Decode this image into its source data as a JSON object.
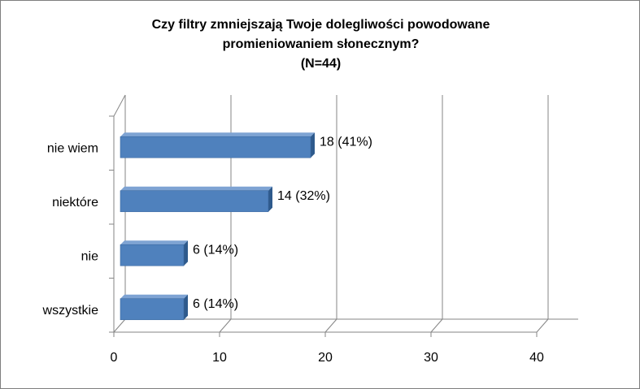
{
  "chart_data": {
    "type": "bar",
    "orientation": "horizontal",
    "title_lines": [
      "Czy filtry zmniejszają Twoje dolegliwości powodowane",
      "promieniowaniem słonecznym?",
      "(N=44)"
    ],
    "categories": [
      "nie wiem",
      "niektóre",
      "nie",
      "wszystkie"
    ],
    "values": [
      18,
      14,
      6,
      6
    ],
    "data_labels": [
      "18 (41%)",
      "14 (32%)",
      "6 (14%)",
      "6 (14%)"
    ],
    "xticks": [
      "0",
      "10",
      "20",
      "30",
      "40"
    ],
    "xlim": [
      0,
      40
    ],
    "grid": true,
    "legend": "none",
    "bar_color": "#4f81bd",
    "bar_side_color": "#2e5a8c",
    "bar_top_color": "#7ea3d3"
  }
}
